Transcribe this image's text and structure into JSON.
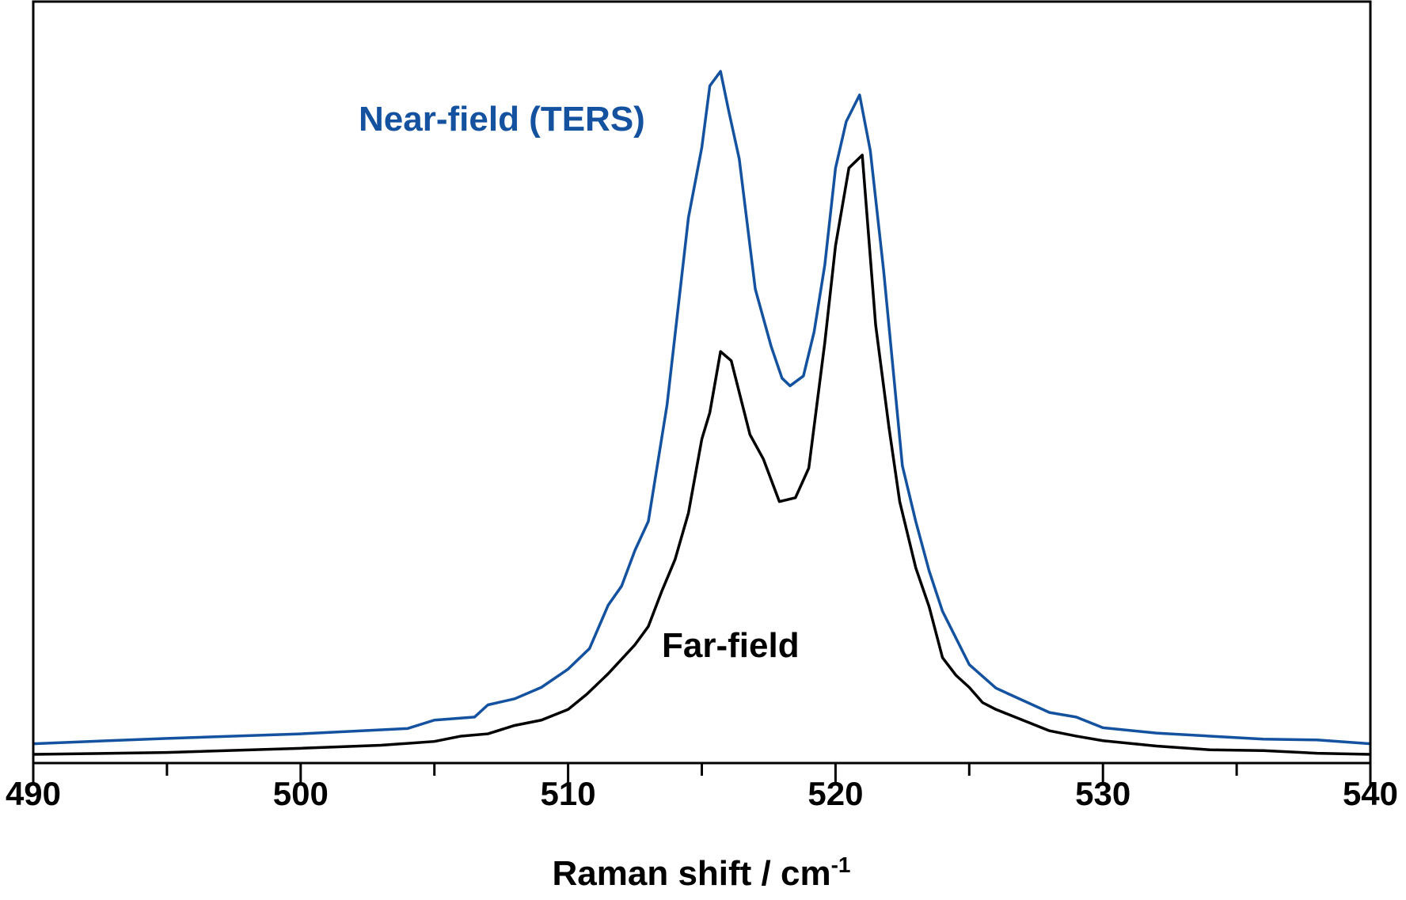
{
  "chart_data": {
    "type": "line",
    "title": "",
    "xlabel": "Raman shift / cm",
    "xlabel_superscript": "-1",
    "ylabel": "",
    "xlim": [
      490,
      540
    ],
    "ylim": [
      0,
      100
    ],
    "xticks": [
      490,
      500,
      510,
      520,
      530,
      540
    ],
    "xticks_minor": [
      495,
      505,
      515,
      525,
      535
    ],
    "grid": false,
    "series": [
      {
        "name": "Near-field (TERS)",
        "color": "#1452a0",
        "x": [
          490,
          495,
          500,
          504,
          505,
          506.5,
          507,
          508,
          509,
          510,
          510.8,
          511.5,
          512,
          512.5,
          513,
          513.7,
          514.5,
          515,
          515.3,
          515.7,
          516,
          516.4,
          517,
          517.6,
          518,
          518.3,
          518.8,
          519.2,
          519.6,
          520,
          520.4,
          520.9,
          521.3,
          521.8,
          522.5,
          523,
          523.5,
          524,
          525,
          526,
          527,
          528,
          529,
          530,
          532,
          534,
          536,
          538,
          540
        ],
        "y": [
          1.5,
          2.2,
          2.8,
          3.5,
          4.6,
          5.0,
          6.6,
          7.4,
          8.9,
          11.3,
          14,
          19.7,
          22.2,
          26.9,
          30.7,
          46,
          70.6,
          79.8,
          87.9,
          89.8,
          84.7,
          78.3,
          61.2,
          53.6,
          49.5,
          48.5,
          49.8,
          55.6,
          64.4,
          77.1,
          83.2,
          86.7,
          79.4,
          63.6,
          38,
          30.7,
          24.2,
          18.9,
          11.9,
          8.8,
          7.2,
          5.6,
          5.0,
          3.6,
          2.9,
          2.5,
          2.1,
          2.0,
          1.5
        ]
      },
      {
        "name": "Far-field",
        "color": "#000000",
        "x": [
          490,
          495,
          500,
          503,
          505,
          506,
          507,
          508,
          509,
          510,
          510.7,
          511.5,
          512.5,
          513,
          513.5,
          514,
          514.5,
          515,
          515.3,
          515.7,
          516.1,
          516.8,
          517.3,
          517.9,
          518.5,
          519,
          519.6,
          520,
          520.5,
          521,
          521.5,
          522,
          522.4,
          523,
          523.5,
          524,
          524.5,
          525,
          525.5,
          526,
          527,
          528,
          529,
          530,
          532,
          534,
          536,
          538,
          540
        ],
        "y": [
          0.1,
          0.35,
          0.9,
          1.3,
          1.8,
          2.5,
          2.8,
          3.9,
          4.6,
          6.0,
          8.0,
          10.7,
          14.5,
          16.9,
          21.5,
          25.7,
          31.8,
          41.5,
          45,
          53,
          51.8,
          42.1,
          38.9,
          33.3,
          33.8,
          37.7,
          54.2,
          66.9,
          77.1,
          78.8,
          56.5,
          43,
          33.3,
          24.6,
          19.5,
          12.8,
          10.5,
          8.9,
          6.9,
          6.0,
          4.6,
          3.2,
          2.5,
          1.9,
          1.2,
          0.7,
          0.6,
          0.25,
          0.1
        ]
      }
    ],
    "annotations": [
      "Near-field (TERS)",
      "Far-field"
    ]
  }
}
